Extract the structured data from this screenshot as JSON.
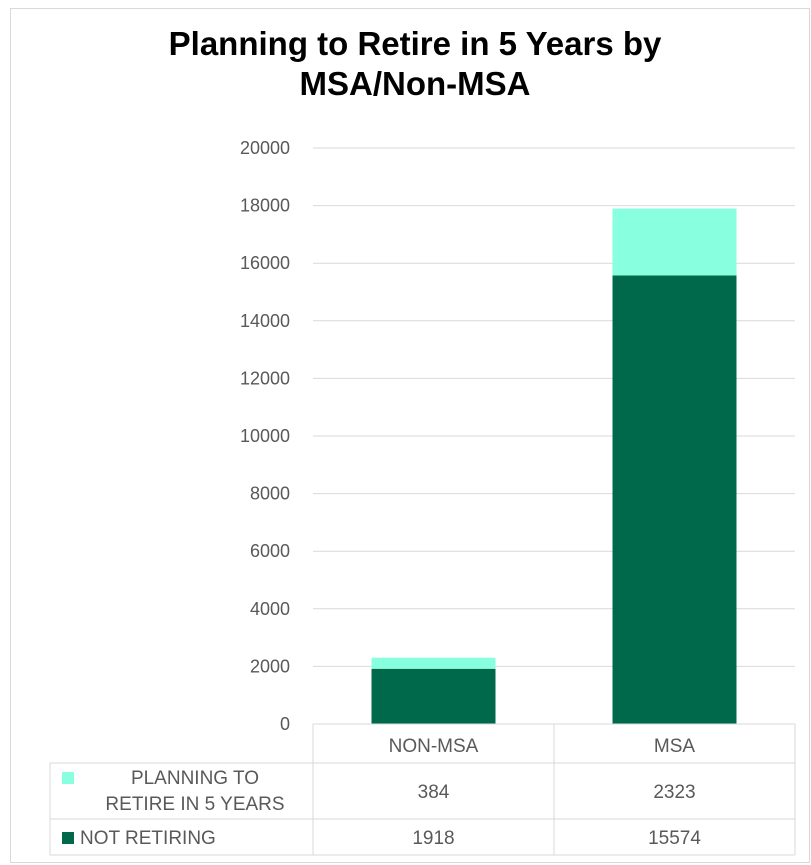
{
  "chart_data": {
    "type": "bar",
    "stacked": true,
    "title_line1": "Planning to Retire in 5 Years by",
    "title_line2": "MSA/Non-MSA",
    "categories": [
      "NON-MSA",
      "MSA"
    ],
    "series": [
      {
        "name": "NOT RETIRING",
        "values": [
          1918,
          15574
        ],
        "color": "#00684b"
      },
      {
        "name": "PLANNING TO RETIRE IN 5 YEARS",
        "name_line1": "PLANNING TO",
        "name_line2": "RETIRE IN 5 YEARS",
        "values": [
          384,
          2323
        ],
        "color": "#88ffde"
      }
    ],
    "ylim": [
      0,
      20000
    ],
    "yticks": [
      "0",
      "2000",
      "4000",
      "6000",
      "8000",
      "10000",
      "12000",
      "14000",
      "16000",
      "18000",
      "20000"
    ],
    "grid": true,
    "legend": "data-table",
    "data_table": {
      "rows": [
        {
          "series": "PLANNING TO RETIRE IN 5 YEARS",
          "values": [
            "384",
            "2323"
          ]
        },
        {
          "series": "NOT RETIRING",
          "values": [
            "1918",
            "15574"
          ]
        }
      ]
    }
  }
}
